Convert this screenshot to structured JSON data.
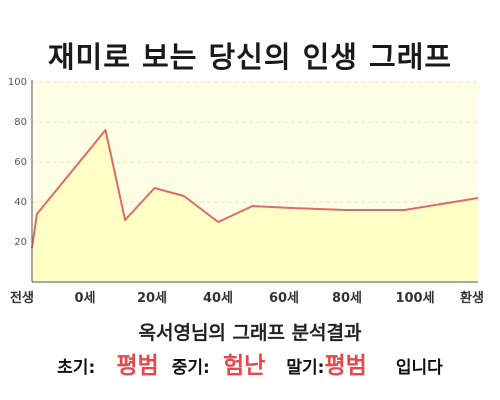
{
  "title": "재미로 보는 당신의 인생 그래프",
  "subtitle": "옥서영님의 그래프 분석결과",
  "summary": {
    "early_label": "초기:",
    "early_value": "평범",
    "mid_label": "중기:",
    "mid_value": "험난",
    "late_label": "말기:",
    "late_value": "평범",
    "suffix": "입니다"
  },
  "colors": {
    "line": "#e06a6a",
    "fill": "#ffffc6",
    "plot_bg": "#ffffe6",
    "accent": "#e8474e"
  },
  "chart_data": {
    "type": "area",
    "title": "재미로 보는 당신의 인생 그래프",
    "xlabel": "",
    "ylabel": "",
    "ylim": [
      0,
      100
    ],
    "yticks": [
      "100",
      "80",
      "60",
      "40",
      "20"
    ],
    "x_tick_labels": [
      "전생",
      "0세",
      "20세",
      "40세",
      "60세",
      "80세",
      "100세",
      "환생"
    ],
    "grid": true,
    "series": [
      {
        "x": [
          -1,
          0,
          14,
          18,
          24,
          30,
          37,
          44,
          52,
          63,
          75,
          90
        ],
        "values": [
          17,
          34,
          76,
          31,
          47,
          43,
          30,
          38,
          37,
          36,
          36,
          42
        ]
      }
    ]
  }
}
